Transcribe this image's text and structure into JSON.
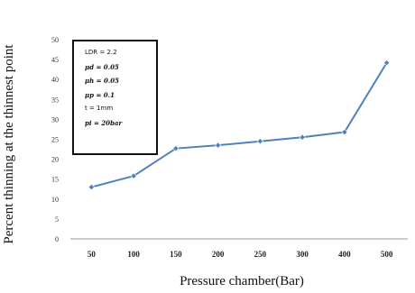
{
  "chart_data": {
    "type": "line",
    "categories": [
      "50",
      "100",
      "150",
      "200",
      "250",
      "300",
      "400",
      "500"
    ],
    "series": [
      {
        "values": [
          13,
          15.8,
          22.7,
          23.5,
          24.5,
          25.5,
          26.8,
          44.2
        ],
        "color": "#4f81bd"
      }
    ],
    "xlabel": "Pressure chamber(Bar)",
    "ylabel": "Percent thinning at the thinnest point",
    "ylim": [
      0,
      50
    ],
    "yticks": [
      0,
      5,
      10,
      15,
      20,
      25,
      30,
      35,
      40,
      45,
      50
    ],
    "grid": false,
    "annotation": [
      "LDR = 2.2",
      "μd = 0.05",
      "μh = 0.05",
      "μp = 0.1",
      "t = 1mm",
      "pi = 20bar"
    ]
  }
}
